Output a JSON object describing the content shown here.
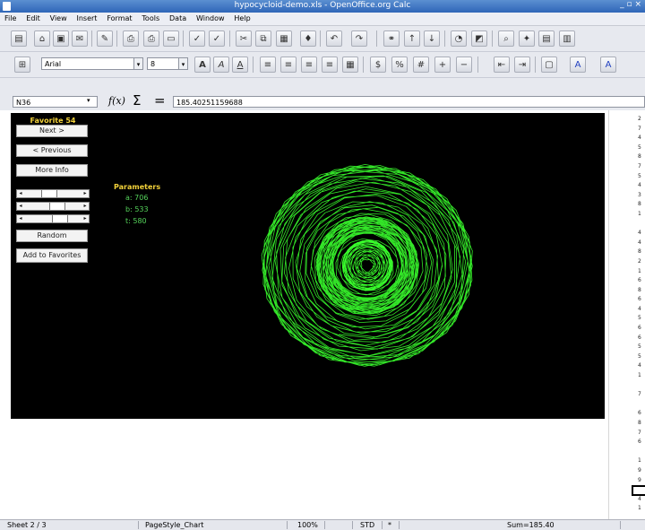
{
  "window": {
    "title": "hypocycloid-demo.xls - OpenOffice.org Calc"
  },
  "menu": [
    "File",
    "Edit",
    "View",
    "Insert",
    "Format",
    "Tools",
    "Data",
    "Window",
    "Help"
  ],
  "formatting": {
    "font_name": "Arial",
    "font_size": "8"
  },
  "formula_bar": {
    "cell_ref": "N36",
    "fx": "f(x)",
    "sigma": "Σ",
    "equals": "=",
    "value": "185.40251159688"
  },
  "panel": {
    "favorite_label": "Favorite 54",
    "next_button": "Next >",
    "previous_button": "< Previous",
    "more_info_button": "More Info",
    "random_button": "Random",
    "add_favorites_button": "Add to Favorites",
    "sliders": [
      {
        "value": 0.4
      },
      {
        "value": 0.58
      },
      {
        "value": 0.65
      }
    ]
  },
  "parameters": {
    "title": "Parameters",
    "items": [
      "a: 706",
      "b: 533",
      "t: 580"
    ]
  },
  "column_values": [
    "2",
    "7",
    "4",
    "5",
    "8",
    "7",
    "5",
    "4",
    "3",
    "8",
    "1",
    "",
    "4",
    "4",
    "8",
    "2",
    "1",
    "6",
    "8",
    "6",
    "4",
    "5",
    "6",
    "6",
    "5",
    "5",
    "4",
    "1",
    "",
    "7",
    "",
    "6",
    "8",
    "7",
    "6",
    "",
    "1",
    "9",
    "9",
    "9",
    "4",
    "1"
  ],
  "plot": {
    "line_color": "#39ff2c",
    "background": "#000000"
  },
  "statusbar": {
    "sheet": "Sheet 2 / 3",
    "page_style": "PageStyle_Chart",
    "zoom": "100%",
    "mode": "STD",
    "modified": "*",
    "sum": "Sum=185.40"
  }
}
